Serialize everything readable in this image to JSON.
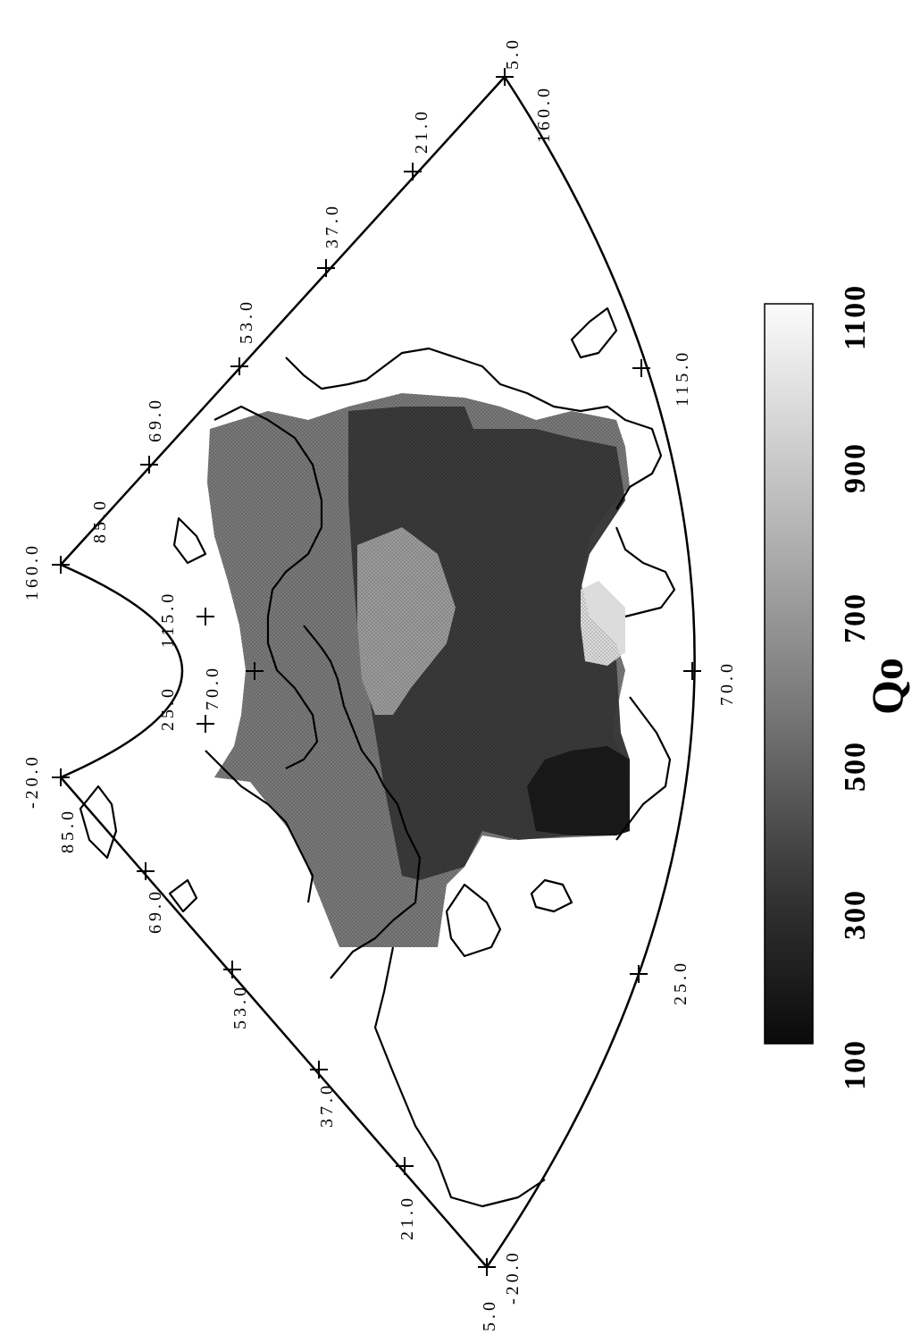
{
  "map": {
    "projection_labels": {
      "lat_left_edge": [
        "5.0",
        "21.0",
        "37.0",
        "53.0",
        "69.0",
        "85.0"
      ],
      "lat_right_edge": [
        "85.0",
        "69.0",
        "53.0",
        "37.0",
        "21.0",
        "5.0"
      ],
      "lon_bottom_edge": [
        "25.0",
        "70.0",
        "115.0"
      ],
      "lon_top_arc": [
        "25.0",
        "70.0",
        "115.0"
      ],
      "corner_lon_labels": [
        "-20.0",
        "160.0",
        "160.0",
        "-20.0"
      ]
    },
    "colorbar": {
      "title": "Qo",
      "min": 100,
      "max": 1100,
      "ticks": [
        "100",
        "300",
        "500",
        "700",
        "900",
        "1100"
      ],
      "colors": {
        "low": "#0a0a0a",
        "high": "#fbfbfb"
      }
    },
    "orientation": "rotated 90 degrees counter-clockwise",
    "grayscale_fill": true
  }
}
